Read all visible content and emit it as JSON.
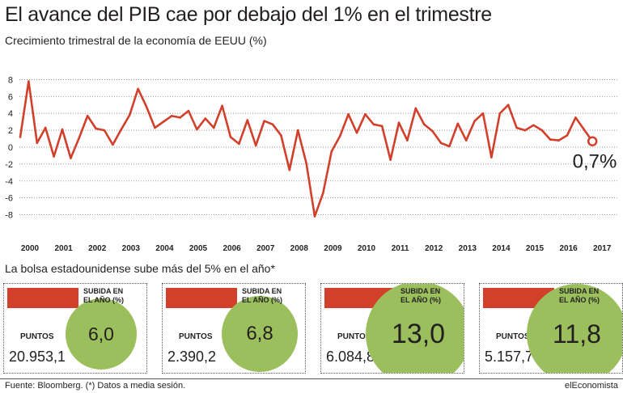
{
  "title": "El avance del PIB cae por debajo del 1% en el trimestre",
  "subtitle": "Crecimiento trimestral de la economía de EEUU (%)",
  "chart_data": {
    "type": "line",
    "ylim": [
      -9,
      9
    ],
    "yticks": [
      8,
      6,
      4,
      2,
      0,
      -2,
      -4,
      -6,
      -8
    ],
    "grid": "horizontal dotted",
    "series_color": "#d2402c",
    "last_value_label": "0,7%",
    "years": [
      "2000",
      "2001",
      "2002",
      "2003",
      "2004",
      "2005",
      "2006",
      "2007",
      "2008",
      "2009",
      "2010",
      "2011",
      "2012",
      "2013",
      "2014",
      "2015",
      "2016",
      "2017"
    ],
    "x_start": "2000-Q1",
    "values": [
      1.2,
      7.8,
      0.5,
      2.3,
      -1.1,
      2.1,
      -1.3,
      1.1,
      3.7,
      2.2,
      2.0,
      0.3,
      2.1,
      3.8,
      6.9,
      4.8,
      2.3,
      3.0,
      3.7,
      3.5,
      4.3,
      2.1,
      3.4,
      2.3,
      4.9,
      1.2,
      0.4,
      3.2,
      0.2,
      3.1,
      2.7,
      1.4,
      -2.7,
      2.0,
      -1.9,
      -8.2,
      -5.4,
      -0.5,
      1.3,
      3.9,
      1.7,
      3.9,
      2.7,
      2.5,
      -1.5,
      2.9,
      0.8,
      4.6,
      2.7,
      1.9,
      0.5,
      0.1,
      2.8,
      0.8,
      3.1,
      4.0,
      -1.2,
      4.0,
      5.0,
      2.3,
      2.0,
      2.6,
      2.0,
      0.9,
      0.8,
      1.4,
      3.5,
      2.1,
      0.7
    ]
  },
  "section_title": "La bolsa estadounidense sube más del 5% en el año*",
  "cards": [
    {
      "tag": "SUBIDA EN EL AÑO (%)",
      "value": "6,0",
      "points_label": "PUNTOS",
      "points": "20.953,1",
      "growth": 6.0
    },
    {
      "tag": "SUBIDA EN EL AÑO (%)",
      "value": "6,8",
      "points_label": "PUNTOS",
      "points": "2.390,2",
      "growth": 6.8
    },
    {
      "tag": "SUBIDA EN EL AÑO (%)",
      "value": "13,0",
      "points_label": "PUNTOS",
      "points": "6.084,8",
      "growth": 13.0
    },
    {
      "tag": "SUBIDA EN EL AÑO (%)",
      "value": "11,8",
      "points_label": "PUNTOS",
      "points": "5.157,7",
      "growth": 11.8
    }
  ],
  "footer": {
    "source": "Fuente: Bloomberg. (*) Datos a media sesión.",
    "brand": "elEconomista"
  }
}
